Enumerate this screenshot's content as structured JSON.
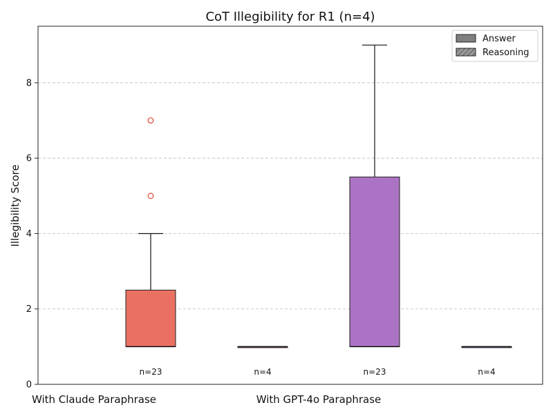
{
  "chart_data": {
    "type": "box",
    "title": "CoT Illegibility for R1 (n=4)",
    "xlabel": "",
    "ylabel": "Illegibility Score",
    "ylim": [
      0,
      9.5
    ],
    "yticks": [
      0,
      2,
      4,
      6,
      8
    ],
    "grid": "y-dashed",
    "legend": {
      "placement": "top-right",
      "entries": [
        {
          "label": "Answer",
          "pattern": "solid"
        },
        {
          "label": "Reasoning",
          "pattern": "hatched"
        }
      ]
    },
    "group_labels": [
      "With Claude Paraphrase",
      "With GPT-4o Paraphrase"
    ],
    "boxes": [
      {
        "color": "#e8685a",
        "n_label": "n=23",
        "q1": 1,
        "median": 1,
        "q3": 2.5,
        "whisker_low": 1,
        "whisker_high": 4,
        "outliers": [
          5,
          7
        ]
      },
      {
        "color": "#e8685a",
        "n_label": "n=4",
        "q1": 1,
        "median": 1,
        "q3": 1,
        "whisker_low": 1,
        "whisker_high": 1,
        "outliers": []
      },
      {
        "color": "#a86cc1",
        "n_label": "n=23",
        "q1": 1,
        "median": 1,
        "q3": 5.5,
        "whisker_low": 1,
        "whisker_high": 9,
        "outliers": []
      },
      {
        "color": "#a86cc1",
        "n_label": "n=4",
        "q1": 1,
        "median": 1,
        "q3": 1,
        "whisker_low": 1,
        "whisker_high": 1,
        "outliers": []
      }
    ]
  }
}
